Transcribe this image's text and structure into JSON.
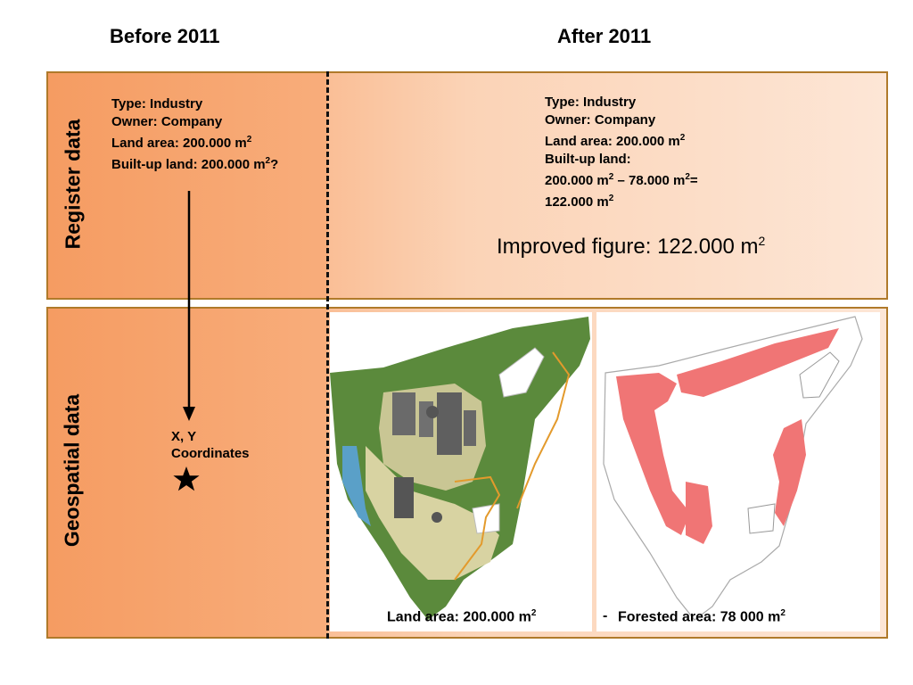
{
  "headings": {
    "before": "Before 2011",
    "after": "After 2011"
  },
  "rows": {
    "register": "Register data",
    "geospatial": "Geospatial data"
  },
  "before_register": {
    "type": "Type: Industry",
    "owner": "Owner: Company",
    "land_area": "Land area: 200.000 m",
    "built_up": "Built-up land: 200.000 m",
    "built_up_suffix": "?",
    "sup": "2"
  },
  "after_register": {
    "type": "Type: Industry",
    "owner": "Owner: Company",
    "land_area": "Land area: 200.000 m",
    "built_up_label": "Built-up land:",
    "calc_a": "200.000 m",
    "calc_b": " – 78.000 m",
    "calc_c": "=",
    "result": "122.000 m",
    "sup": "2"
  },
  "improved_figure": "Improved figure: 122.000 m",
  "coordinates": {
    "line1": "X, Y",
    "line2": "Coordinates"
  },
  "captions": {
    "land_area": "Land area: 200.000 m",
    "minus": "-",
    "forested_area": "Forested area: 78 000 m",
    "sup": "2"
  },
  "colors": {
    "panel_border": "#b07a2a",
    "forest_highlight": "#f07575",
    "orthophoto_green": "#5b8a3c"
  },
  "icons": {
    "star": "star-icon",
    "arrow": "arrow-down-icon"
  }
}
